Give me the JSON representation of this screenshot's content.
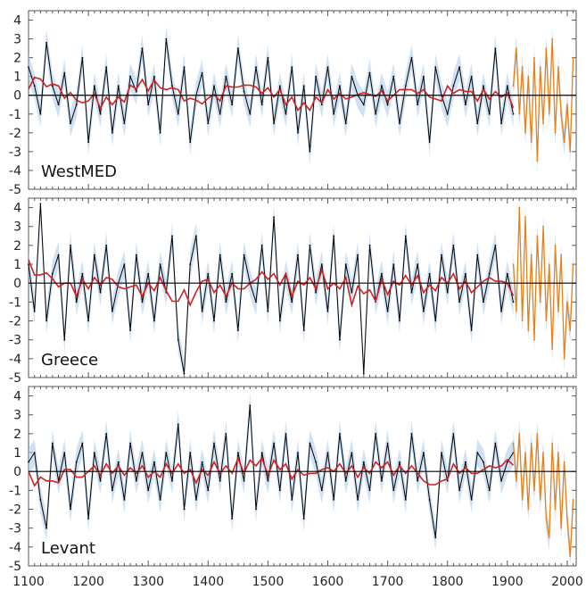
{
  "chart_data": [
    {
      "type": "line",
      "label": "WestMED",
      "ylim": [
        -5,
        4.5
      ],
      "yticks": [
        -5,
        -4,
        -3,
        -2,
        -1,
        0,
        1,
        2,
        3,
        4
      ],
      "series": [
        {
          "color": "#000000",
          "x": [
            1100,
            1110,
            1120,
            1130,
            1140,
            1150,
            1160,
            1170,
            1180,
            1190,
            1200,
            1210,
            1220,
            1230,
            1240,
            1250,
            1260,
            1270,
            1280,
            1290,
            1300,
            1310,
            1320,
            1330,
            1340,
            1350,
            1360,
            1370,
            1380,
            1390,
            1400,
            1410,
            1420,
            1430,
            1440,
            1450,
            1460,
            1470,
            1480,
            1490,
            1500,
            1510,
            1520,
            1530,
            1540,
            1550,
            1560,
            1570,
            1580,
            1590,
            1600,
            1610,
            1620,
            1630,
            1640,
            1650,
            1660,
            1670,
            1680,
            1690,
            1700,
            1710,
            1720,
            1730,
            1740,
            1750,
            1760,
            1770,
            1780,
            1790,
            1800,
            1810,
            1820,
            1830,
            1840,
            1850,
            1860,
            1870,
            1880,
            1890,
            1900,
            1910
          ],
          "y": [
            1.5,
            0.5,
            -1.0,
            2.8,
            0.5,
            -0.5,
            1.2,
            -1.5,
            -0.5,
            2.0,
            -2.5,
            0.5,
            -1.0,
            1.5,
            -2.0,
            0.5,
            -1.5,
            1.0,
            0.2,
            2.5,
            -0.5,
            1.0,
            -2.0,
            3.0,
            0.5,
            -1.0,
            1.5,
            -2.5,
            0.0,
            1.2,
            -1.5,
            0.5,
            -1.0,
            1.0,
            -0.5,
            2.5,
            0.2,
            -1.0,
            1.5,
            -0.5,
            2.0,
            -1.5,
            0.5,
            -1.0,
            1.5,
            -2.0,
            0.5,
            -3.0,
            1.0,
            -0.5,
            1.5,
            -1.0,
            0.5,
            -1.5,
            1.0,
            0.0,
            -0.5,
            1.2,
            -1.0,
            0.5,
            -0.5,
            1.0,
            -1.5,
            0.5,
            2.0,
            -0.5,
            1.0,
            -2.5,
            1.5,
            0.0,
            -1.0,
            0.5,
            1.5,
            -0.5,
            1.0,
            -1.5,
            0.5,
            -1.0,
            2.5,
            -1.5,
            0.5,
            -1.0
          ]
        },
        {
          "color": "#e8801a",
          "x": [
            1910,
            1915,
            1920,
            1925,
            1930,
            1935,
            1940,
            1945,
            1950,
            1955,
            1960,
            1965,
            1970,
            1975,
            1980,
            1985,
            1990,
            1995,
            2000,
            2005,
            2010
          ],
          "y": [
            0.5,
            2.5,
            -1.0,
            1.5,
            -2.0,
            1.0,
            -2.5,
            2.0,
            -3.5,
            1.5,
            -1.5,
            2.5,
            -1.0,
            3.0,
            -2.0,
            1.5,
            -1.0,
            -2.5,
            -0.5,
            -3.0,
            2.0
          ]
        }
      ]
    },
    {
      "type": "line",
      "label": "Greece",
      "ylim": [
        -5,
        4.5
      ],
      "yticks": [
        -5,
        -4,
        -3,
        -2,
        -1,
        0,
        1,
        2,
        3,
        4
      ],
      "series": [
        {
          "color": "#000000",
          "x": [
            1100,
            1110,
            1120,
            1130,
            1140,
            1150,
            1160,
            1170,
            1180,
            1190,
            1200,
            1210,
            1220,
            1230,
            1240,
            1250,
            1260,
            1270,
            1280,
            1290,
            1300,
            1310,
            1320,
            1330,
            1340,
            1350,
            1360,
            1370,
            1380,
            1390,
            1400,
            1410,
            1420,
            1430,
            1440,
            1450,
            1460,
            1470,
            1480,
            1490,
            1500,
            1510,
            1520,
            1530,
            1540,
            1550,
            1560,
            1570,
            1580,
            1590,
            1600,
            1610,
            1620,
            1630,
            1640,
            1650,
            1660,
            1670,
            1680,
            1690,
            1700,
            1710,
            1720,
            1730,
            1740,
            1750,
            1760,
            1770,
            1780,
            1790,
            1800,
            1810,
            1820,
            1830,
            1840,
            1850,
            1860,
            1870,
            1880,
            1890,
            1900,
            1910
          ],
          "y": [
            1.0,
            -1.5,
            4.2,
            -2.0,
            0.5,
            1.5,
            -3.0,
            2.0,
            -1.0,
            0.5,
            -2.0,
            1.5,
            -0.5,
            2.0,
            -1.5,
            0.0,
            1.0,
            -2.5,
            1.5,
            -1.0,
            0.5,
            -2.0,
            1.0,
            -0.5,
            2.5,
            -3.0,
            -4.8,
            1.0,
            2.5,
            -1.5,
            0.5,
            -2.0,
            1.5,
            -1.0,
            0.5,
            -2.5,
            1.5,
            0.0,
            -1.0,
            2.0,
            -1.5,
            3.5,
            -2.0,
            0.5,
            -1.0,
            1.5,
            -2.5,
            2.0,
            -0.5,
            1.0,
            -1.5,
            2.5,
            -3.0,
            1.0,
            -0.5,
            1.5,
            -4.8,
            2.0,
            -1.0,
            0.5,
            -1.5,
            1.0,
            -2.0,
            2.5,
            -0.5,
            1.0,
            -1.5,
            0.5,
            -2.0,
            1.5,
            -0.5,
            2.0,
            -1.0,
            0.5,
            -2.5,
            1.5,
            -1.0,
            0.5,
            2.0,
            -1.5,
            0.5,
            -1.0
          ]
        },
        {
          "color": "#e8801a",
          "x": [
            1910,
            1915,
            1920,
            1925,
            1930,
            1935,
            1940,
            1945,
            1950,
            1955,
            1960,
            1965,
            1970,
            1975,
            1980,
            1985,
            1990,
            1995,
            2000,
            2005,
            2010
          ],
          "y": [
            1.0,
            -1.5,
            4.0,
            -2.0,
            3.5,
            -2.5,
            1.5,
            -3.0,
            2.5,
            -1.0,
            3.0,
            -2.0,
            1.0,
            -3.5,
            2.0,
            -1.5,
            1.5,
            -4.0,
            -1.0,
            -2.5,
            1.0
          ]
        }
      ]
    },
    {
      "type": "line",
      "label": "Levant",
      "ylim": [
        -5,
        4.5
      ],
      "yticks": [
        -5,
        -4,
        -3,
        -2,
        -1,
        0,
        1,
        2,
        3,
        4
      ],
      "series": [
        {
          "color": "#000000",
          "x": [
            1100,
            1110,
            1120,
            1130,
            1140,
            1150,
            1160,
            1170,
            1180,
            1190,
            1200,
            1210,
            1220,
            1230,
            1240,
            1250,
            1260,
            1270,
            1280,
            1290,
            1300,
            1310,
            1320,
            1330,
            1340,
            1350,
            1360,
            1370,
            1380,
            1390,
            1400,
            1410,
            1420,
            1430,
            1440,
            1450,
            1460,
            1470,
            1480,
            1490,
            1500,
            1510,
            1520,
            1530,
            1540,
            1550,
            1560,
            1570,
            1580,
            1590,
            1600,
            1610,
            1620,
            1630,
            1640,
            1650,
            1660,
            1670,
            1680,
            1690,
            1700,
            1710,
            1720,
            1730,
            1740,
            1750,
            1760,
            1770,
            1780,
            1790,
            1800,
            1810,
            1820,
            1830,
            1840,
            1850,
            1860,
            1870,
            1880,
            1890,
            1900,
            1910
          ],
          "y": [
            0.5,
            1.0,
            -1.5,
            -3.0,
            1.5,
            -0.5,
            1.0,
            -2.0,
            0.5,
            1.5,
            -2.5,
            1.0,
            -0.5,
            2.0,
            -1.0,
            0.5,
            -1.5,
            1.5,
            -0.5,
            1.0,
            -1.0,
            0.5,
            -1.5,
            1.0,
            -0.5,
            2.5,
            -2.0,
            1.0,
            -1.5,
            0.5,
            -1.0,
            1.5,
            -0.5,
            2.0,
            -2.5,
            1.0,
            -0.5,
            3.5,
            -2.0,
            1.0,
            -0.5,
            1.5,
            -1.0,
            2.0,
            -1.5,
            1.0,
            -2.5,
            1.5,
            0.5,
            -1.0,
            1.0,
            -1.5,
            2.0,
            -0.5,
            1.0,
            -1.5,
            0.5,
            -1.0,
            2.0,
            -0.5,
            1.5,
            -1.0,
            0.5,
            -1.5,
            2.0,
            -0.5,
            1.0,
            -1.5,
            -3.5,
            1.0,
            -0.5,
            2.0,
            -1.0,
            0.5,
            -1.5,
            1.0,
            0.5,
            -1.0,
            1.5,
            -0.5,
            0.5,
            1.0
          ]
        },
        {
          "color": "#e8801a",
          "x": [
            1910,
            1915,
            1920,
            1925,
            1930,
            1935,
            1940,
            1945,
            1950,
            1955,
            1960,
            1965,
            1970,
            1975,
            1980,
            1985,
            1990,
            1995,
            2000,
            2005,
            2010
          ],
          "y": [
            1.5,
            -0.5,
            2.0,
            -1.5,
            1.0,
            -2.0,
            1.5,
            -1.0,
            2.0,
            -1.5,
            1.0,
            -2.5,
            -3.5,
            1.5,
            -2.0,
            1.0,
            -3.0,
            0.5,
            -2.5,
            -4.5,
            -1.5
          ]
        }
      ]
    }
  ],
  "xaxis": {
    "xlim": [
      1100,
      2015
    ],
    "ticks": [
      1100,
      1200,
      1300,
      1400,
      1500,
      1600,
      1700,
      1800,
      1900,
      2000
    ]
  },
  "style": {
    "band": "#a8c8ea",
    "raw": "#000000",
    "smooth": "#d42020",
    "instrumental": "#e8801a",
    "zero": "#000000",
    "frame": "#555555"
  }
}
